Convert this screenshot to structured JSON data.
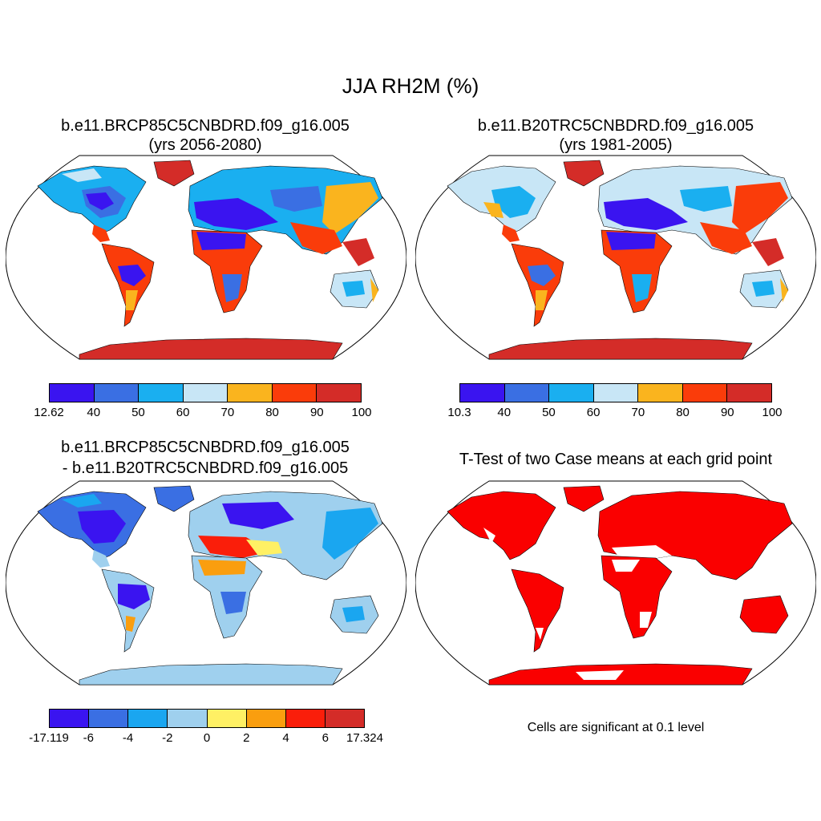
{
  "main_title": "JJA RH2M (%)",
  "panels": {
    "top_left": {
      "title_line1": "b.e11.BRCP85C5CNBDRD.f09_g16.005",
      "title_line2": "(yrs 2056-2080)",
      "colorbar": {
        "colors": [
          "#3a14f0",
          "#3a6fe3",
          "#1aaff0",
          "#c8e6f6",
          "#fab41e",
          "#fa3c0a",
          "#d42c28"
        ],
        "labels": [
          "12.62",
          "40",
          "50",
          "60",
          "70",
          "80",
          "90",
          "100"
        ]
      }
    },
    "top_right": {
      "title_line1": "b.e11.B20TRC5CNBDRD.f09_g16.005",
      "title_line2": "(yrs 1981-2005)",
      "colorbar": {
        "colors": [
          "#3a14f0",
          "#3a6fe3",
          "#1aaff0",
          "#c8e6f6",
          "#fab41e",
          "#fa3c0a",
          "#d42c28"
        ],
        "labels": [
          "10.3",
          "40",
          "50",
          "60",
          "70",
          "80",
          "90",
          "100"
        ]
      }
    },
    "bottom_left": {
      "title_line1": "b.e11.BRCP85C5CNBDRD.f09_g16.005",
      "title_line2": "- b.e11.B20TRC5CNBDRD.f09_g16.005",
      "colorbar": {
        "colors": [
          "#3a14f0",
          "#3a6fe3",
          "#1aa6f0",
          "#9fd0ee",
          "#fff064",
          "#fa9e0f",
          "#fa1e0a",
          "#d42c28"
        ],
        "labels": [
          "-17.119",
          "-6",
          "-4",
          "-2",
          "0",
          "2",
          "4",
          "6",
          "17.324"
        ]
      }
    },
    "bottom_right": {
      "title_line1": "T-Test of two Case means at each grid point",
      "note": "Cells are significant at 0.1 level",
      "significance_color": "#fa0000"
    }
  }
}
